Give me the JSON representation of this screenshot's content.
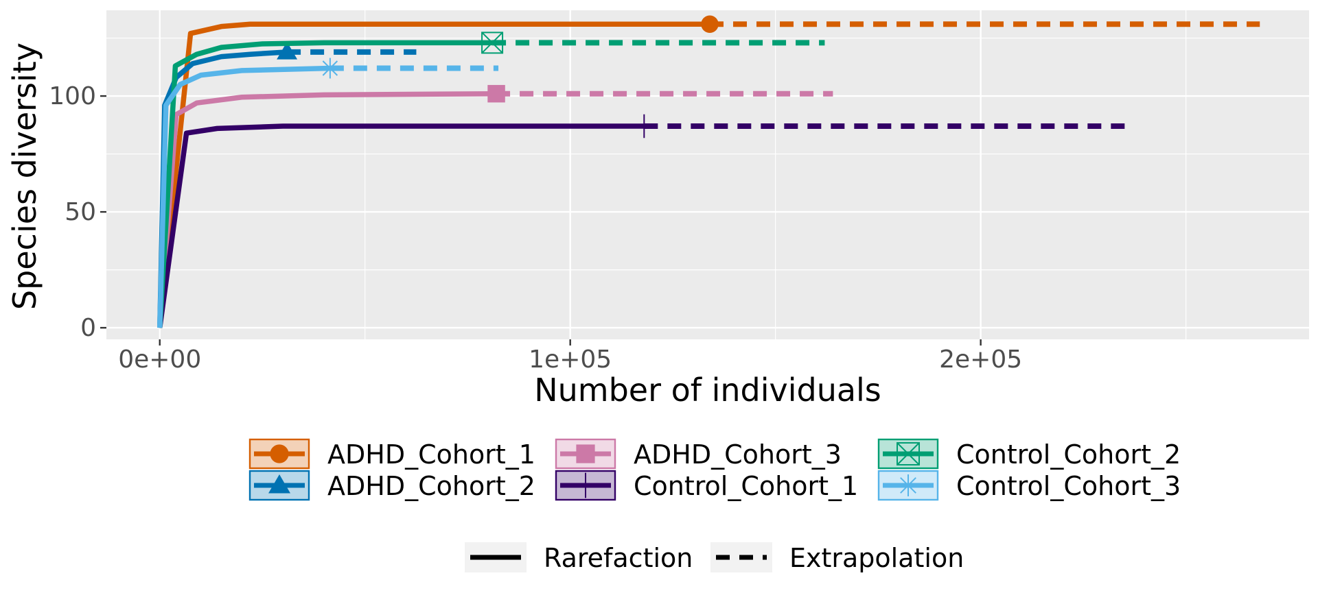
{
  "chart_data": {
    "type": "line",
    "title": "",
    "xlabel": "Number of individuals",
    "ylabel": "Species diversity",
    "xlim": [
      -13000,
      280000
    ],
    "ylim": [
      -5,
      137
    ],
    "x_ticks": [
      0,
      100000,
      200000
    ],
    "x_tick_labels": [
      "0e+00",
      "1e+05",
      "2e+05"
    ],
    "y_ticks": [
      0,
      50,
      100
    ],
    "y_tick_labels": [
      "0",
      "50",
      "100"
    ],
    "grid": true,
    "legend_position": "bottom",
    "series": [
      {
        "name": "ADHD_Cohort_1",
        "color": "#D55E00",
        "marker": "circle",
        "rarefaction": [
          [
            0,
            0
          ],
          [
            3500,
            60
          ],
          [
            7500,
            127
          ],
          [
            15000,
            130
          ],
          [
            22000,
            131
          ],
          [
            40000,
            131
          ],
          [
            80000,
            131
          ],
          [
            134000,
            131
          ]
        ],
        "observed": [
          134000,
          131
        ],
        "extrapolation": [
          [
            134000,
            131
          ],
          [
            268000,
            131
          ]
        ]
      },
      {
        "name": "ADHD_Cohort_2",
        "color": "#0072B2",
        "marker": "triangle",
        "rarefaction": [
          [
            0,
            0
          ],
          [
            1200,
            96
          ],
          [
            4000,
            108
          ],
          [
            8000,
            114
          ],
          [
            15000,
            117
          ],
          [
            22000,
            118
          ],
          [
            31000,
            119
          ]
        ],
        "observed": [
          31000,
          119
        ],
        "extrapolation": [
          [
            31000,
            119
          ],
          [
            62500,
            119
          ]
        ]
      },
      {
        "name": "ADHD_Cohort_3",
        "color": "#CC79A7",
        "marker": "square",
        "rarefaction": [
          [
            0,
            0
          ],
          [
            4000,
            92
          ],
          [
            9000,
            97
          ],
          [
            20000,
            99.5
          ],
          [
            40000,
            100.5
          ],
          [
            82000,
            101
          ]
        ],
        "observed": [
          82000,
          101
        ],
        "extrapolation": [
          [
            82000,
            101
          ],
          [
            164000,
            101
          ]
        ]
      },
      {
        "name": "Control_Cohort_1",
        "color": "#330066",
        "marker": "plus",
        "rarefaction": [
          [
            0,
            0
          ],
          [
            6500,
            84
          ],
          [
            14000,
            86
          ],
          [
            30000,
            87
          ],
          [
            118000,
            87
          ]
        ],
        "observed": [
          118000,
          87
        ],
        "extrapolation": [
          [
            118000,
            87
          ],
          [
            236000,
            87
          ]
        ]
      },
      {
        "name": "Control_Cohort_2",
        "color": "#009E73",
        "marker": "boxed-x",
        "rarefaction": [
          [
            0,
            0
          ],
          [
            3800,
            113
          ],
          [
            9000,
            118
          ],
          [
            15000,
            121
          ],
          [
            25000,
            122.5
          ],
          [
            40000,
            123
          ],
          [
            81000,
            123
          ]
        ],
        "observed": [
          81000,
          123
        ],
        "extrapolation": [
          [
            81000,
            123
          ],
          [
            162000,
            123
          ]
        ]
      },
      {
        "name": "Control_Cohort_3",
        "color": "#56B4E9",
        "marker": "asterisk",
        "rarefaction": [
          [
            0,
            0
          ],
          [
            1500,
            96
          ],
          [
            5000,
            105
          ],
          [
            10000,
            109
          ],
          [
            20000,
            111
          ],
          [
            41500,
            112
          ]
        ],
        "observed": [
          41500,
          112
        ],
        "extrapolation": [
          [
            41500,
            112
          ],
          [
            82500,
            112
          ]
        ]
      }
    ],
    "linetype_legend": [
      {
        "label": "Rarefaction",
        "style": "solid"
      },
      {
        "label": "Extrapolation",
        "style": "dashed"
      }
    ]
  }
}
